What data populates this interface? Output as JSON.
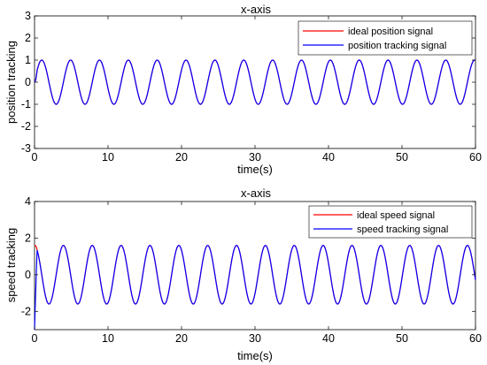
{
  "chart_data": [
    {
      "type": "line",
      "title": "x-axis",
      "xlabel": "time(s)",
      "ylabel": "position tracking",
      "xlim": [
        0,
        60
      ],
      "ylim": [
        -3,
        3
      ],
      "xticks": [
        "0",
        "10",
        "20",
        "30",
        "40",
        "50",
        "60"
      ],
      "yticks": [
        "-3",
        "-2",
        "-1",
        "0",
        "1",
        "2",
        "3"
      ],
      "legend_position": "top-right",
      "signal": {
        "form": "sin",
        "amplitude": 1,
        "angular_frequency": 1.6,
        "offset": 0
      },
      "series": [
        {
          "name": "ideal position signal",
          "color": "#ff0000",
          "start_value": 0
        },
        {
          "name": "position tracking signal",
          "color": "#0000ff",
          "start_value": 0
        }
      ]
    },
    {
      "type": "line",
      "title": "x-axis",
      "xlabel": "time(s)",
      "ylabel": "speed tracking",
      "xlim": [
        0,
        60
      ],
      "ylim": [
        -3,
        4
      ],
      "xticks": [
        "0",
        "10",
        "20",
        "30",
        "40",
        "50",
        "60"
      ],
      "yticks": [
        "-2",
        "0",
        "2",
        "4"
      ],
      "legend_position": "top-right",
      "signal": {
        "form": "cos",
        "amplitude": 1.6,
        "angular_frequency": 1.6,
        "offset": 0
      },
      "series": [
        {
          "name": "ideal speed signal",
          "color": "#ff0000",
          "start_value": 1.6
        },
        {
          "name": "speed tracking signal",
          "color": "#0000ff",
          "start_value": -3
        }
      ]
    }
  ]
}
